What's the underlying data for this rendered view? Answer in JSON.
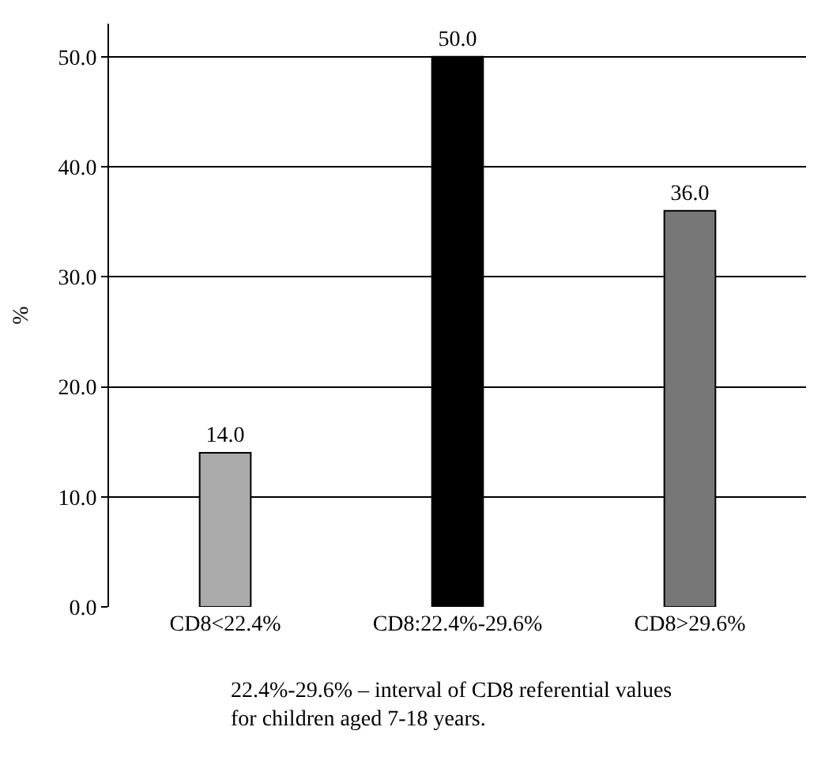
{
  "chart_data": {
    "type": "bar",
    "ylabel": "%",
    "categories": [
      "CD8<22.4%",
      "CD8:22.4%-29.6%",
      "CD8>29.6%"
    ],
    "values": [
      14,
      50,
      36
    ],
    "value_labels": [
      "14.0",
      "50.0",
      "36.0"
    ],
    "colors": [
      "#aaaaaa",
      "#000000",
      "#777777"
    ],
    "ylim": [
      0,
      53
    ],
    "yticks": [
      {
        "value": 0,
        "label": "0.0"
      },
      {
        "value": 10,
        "label": "10.0"
      },
      {
        "value": 20,
        "label": "20.0"
      },
      {
        "value": 30,
        "label": "30.0"
      },
      {
        "value": 40,
        "label": "40.0"
      },
      {
        "value": 50,
        "label": "50.0"
      }
    ],
    "grid": "y",
    "legend": false,
    "annotations": [
      "22.4%-29.6% – interval of CD8 referential values\nfor children aged 7-18 years."
    ]
  }
}
